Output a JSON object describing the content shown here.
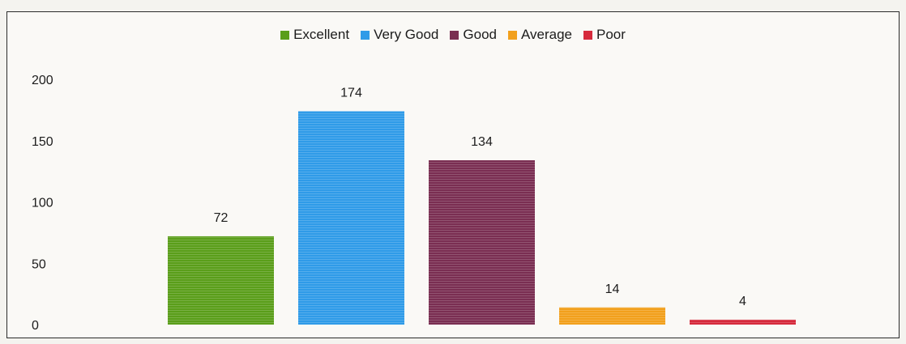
{
  "chart_data": {
    "type": "bar",
    "title": "",
    "xlabel": "",
    "ylabel": "",
    "categories": [
      "Excellent",
      "Very Good",
      "Good",
      "Average",
      "Poor"
    ],
    "values": [
      72,
      174,
      134,
      14,
      4
    ],
    "data_labels": [
      "72",
      "174",
      "134",
      "14",
      "4"
    ],
    "colors": [
      "#5a9e1a",
      "#2f9be8",
      "#7a2e52",
      "#f2a01c",
      "#d62a3c"
    ],
    "ylim": [
      0,
      200
    ],
    "yticks": [
      "0",
      "50",
      "100",
      "150",
      "200"
    ],
    "ytick_values": [
      0,
      50,
      100,
      150,
      200
    ],
    "grid": false,
    "legend_position": "top-center"
  }
}
